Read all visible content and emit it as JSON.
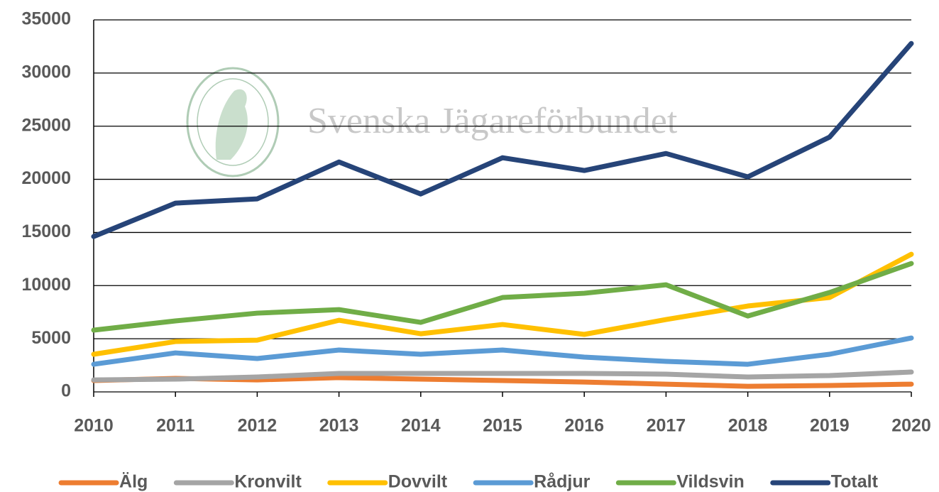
{
  "chart_data": {
    "type": "line",
    "watermark": "Svenska Jägareförbundet",
    "categories": [
      "2010",
      "2011",
      "2012",
      "2013",
      "2014",
      "2015",
      "2016",
      "2017",
      "2018",
      "2019",
      "2020"
    ],
    "ylim": [
      0,
      35000
    ],
    "yticks": [
      0,
      5000,
      10000,
      15000,
      20000,
      25000,
      30000,
      35000
    ],
    "grid": true,
    "legend": "bottom",
    "series": [
      {
        "name": "Älg",
        "color": "#ed7d31",
        "values": [
          1070,
          1270,
          1130,
          1340,
          1200,
          1070,
          930,
          730,
          530,
          600,
          730
        ]
      },
      {
        "name": "Kronvilt",
        "color": "#a5a5a5",
        "values": [
          1130,
          1200,
          1400,
          1740,
          1740,
          1740,
          1740,
          1670,
          1400,
          1540,
          1870
        ]
      },
      {
        "name": "Dovvilt",
        "color": "#ffc000",
        "values": [
          3540,
          4740,
          4870,
          6740,
          5470,
          6340,
          5410,
          6810,
          8080,
          8880,
          12950
        ]
      },
      {
        "name": "Rådjur",
        "color": "#5b9bd5",
        "values": [
          2600,
          3670,
          3140,
          3940,
          3540,
          3940,
          3270,
          2870,
          2600,
          3540,
          5070
        ]
      },
      {
        "name": "Vildsvin",
        "color": "#70ad47",
        "values": [
          5810,
          6680,
          7410,
          7740,
          6540,
          8880,
          9280,
          10080,
          7140,
          9350,
          12080
        ]
      },
      {
        "name": "Totalt",
        "color": "#264478",
        "values": [
          14620,
          17760,
          18160,
          21630,
          18620,
          22030,
          20830,
          22430,
          20230,
          23970,
          32780
        ]
      }
    ]
  }
}
